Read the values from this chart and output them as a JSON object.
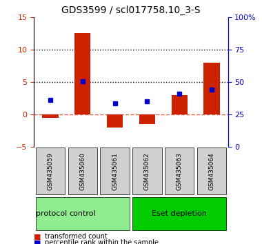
{
  "title": "GDS3599 / scl017758.10_3-S",
  "samples": [
    "GSM435059",
    "GSM435060",
    "GSM435061",
    "GSM435062",
    "GSM435063",
    "GSM435064"
  ],
  "red_bars": [
    -0.5,
    12.5,
    -2.0,
    -1.5,
    3.0,
    8.0
  ],
  "blue_dots": [
    2.2,
    5.1,
    1.7,
    2.0,
    3.2,
    3.8
  ],
  "ylim_left": [
    -5,
    15
  ],
  "ylim_right": [
    0,
    100
  ],
  "yticks_left": [
    -5,
    0,
    5,
    10,
    15
  ],
  "yticks_right": [
    0,
    25,
    50,
    75,
    100
  ],
  "ytick_labels_right": [
    "0",
    "25",
    "50",
    "75",
    "100%"
  ],
  "hlines_dotted": [
    5,
    10
  ],
  "hline_dashed_red": 0,
  "groups": [
    {
      "label": "control",
      "color": "#90EE90",
      "samples": [
        0,
        1,
        2
      ]
    },
    {
      "label": "Eset depletion",
      "color": "#00CC00",
      "samples": [
        3,
        4,
        5
      ]
    }
  ],
  "protocol_label": "protocol",
  "red_color": "#CC2200",
  "blue_color": "#0000CC",
  "bar_width": 0.5,
  "legend_items": [
    {
      "label": "transformed count",
      "color": "#CC2200"
    },
    {
      "label": "percentile rank within the sample",
      "color": "#0000CC"
    }
  ]
}
